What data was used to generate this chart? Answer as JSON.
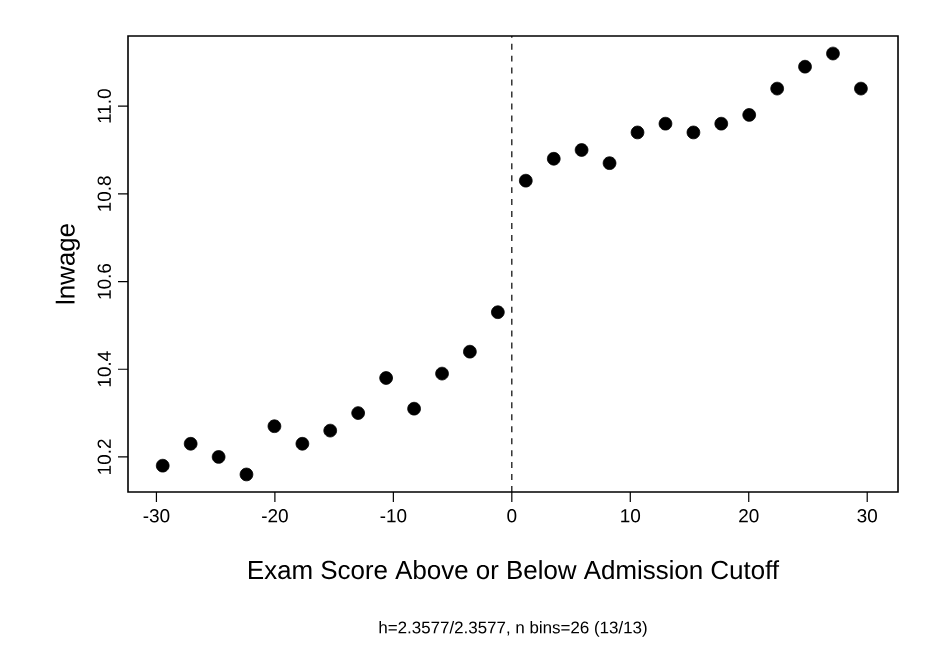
{
  "chart_data": {
    "type": "scatter",
    "xlabel": "Exam Score Above or Below Admission Cutoff",
    "ylabel": "lnwage",
    "annotations": [
      "h=2.3577/2.3577,  n bins=26 (13/13)"
    ],
    "x": [
      -29.47,
      -27.11,
      -24.75,
      -22.4,
      -20.04,
      -17.68,
      -15.33,
      -12.97,
      -10.61,
      -8.25,
      -5.89,
      -3.54,
      -1.18,
      1.18,
      3.54,
      5.89,
      8.25,
      10.61,
      12.97,
      15.33,
      17.68,
      20.04,
      22.4,
      24.75,
      27.11,
      29.47
    ],
    "values": [
      10.18,
      10.23,
      10.2,
      10.16,
      10.27,
      10.23,
      10.26,
      10.3,
      10.38,
      10.31,
      10.39,
      10.44,
      10.53,
      10.83,
      10.88,
      10.9,
      10.87,
      10.94,
      10.96,
      10.94,
      10.96,
      10.98,
      11.04,
      11.09,
      11.12,
      11.04
    ],
    "color": "#000000",
    "marker": "circle",
    "xlim": [
      -32.4,
      32.6
    ],
    "ylim": [
      10.12,
      11.16
    ],
    "xticks": [
      -30,
      -20,
      -10,
      0,
      10,
      20,
      30
    ],
    "yticks": [
      10.2,
      10.4,
      10.6,
      10.8,
      {
        "value": 11,
        "label": "11.0"
      }
    ],
    "ref_lines": [
      {
        "axis": "x",
        "value": 0,
        "color": "#000000",
        "line_style": "dashed"
      }
    ],
    "grid": false
  }
}
